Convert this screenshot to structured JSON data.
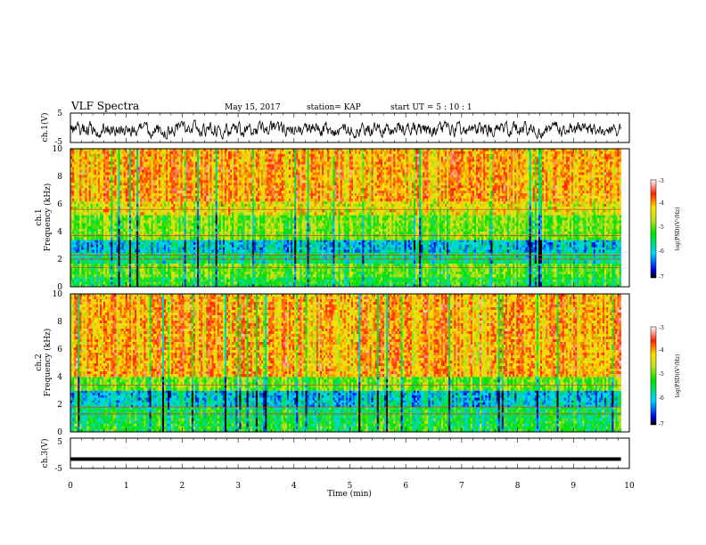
{
  "header": {
    "title": "VLF Spectra",
    "date": "May 15, 2017",
    "station": "station= KAP",
    "start": "start  UT  =   5  : 10 : 1"
  },
  "chart_data": [
    {
      "type": "line",
      "panel": "ch1-waveform",
      "ylabel": "ch.1(V)",
      "ylim": [
        -5,
        5
      ],
      "xlim": [
        0,
        10
      ],
      "y_ticks": [
        "5",
        "-5"
      ],
      "series": [
        {
          "mean": -0.6,
          "amplitude_approx": 1.5,
          "x_end": 9.85
        }
      ]
    },
    {
      "type": "heatmap",
      "panel": "ch1-spectrogram",
      "ylabel": "ch.1\nFrequency (kHz)",
      "ylim": [
        0,
        10
      ],
      "xlim": [
        0,
        10
      ],
      "y_ticks": [
        "0",
        "2",
        "4",
        "6",
        "8",
        "10"
      ],
      "horizontal_lines_khz": [
        5.6,
        3.7,
        2.3,
        2.0,
        1.4
      ],
      "bands": [
        {
          "from_khz": 0.0,
          "to_khz": 0.7,
          "log_psd": -5.3
        },
        {
          "from_khz": 0.7,
          "to_khz": 1.7,
          "log_psd": -5.0
        },
        {
          "from_khz": 1.7,
          "to_khz": 2.5,
          "log_psd": -5.6
        },
        {
          "from_khz": 2.5,
          "to_khz": 3.4,
          "log_psd": -6.0
        },
        {
          "from_khz": 3.4,
          "to_khz": 5.2,
          "log_psd": -4.9
        },
        {
          "from_khz": 5.2,
          "to_khz": 6.2,
          "log_psd": -4.4
        },
        {
          "from_khz": 6.2,
          "to_khz": 10.0,
          "log_psd": -4.0
        }
      ],
      "colorbar": {
        "label": "log(PSD)(V²/Hz)",
        "ticks": [
          "-3",
          "-4",
          "-5",
          "-6",
          "-7"
        ],
        "range": [
          -7,
          -3
        ]
      }
    },
    {
      "type": "heatmap",
      "panel": "ch2-spectrogram",
      "ylabel": "ch.2\nFrequency (kHz)",
      "ylim": [
        0,
        10
      ],
      "xlim": [
        0,
        10
      ],
      "y_ticks": [
        "0",
        "2",
        "4",
        "6",
        "8",
        "10"
      ],
      "horizontal_lines_khz": [
        3.4,
        1.8,
        1.3
      ],
      "bands": [
        {
          "from_khz": 0.0,
          "to_khz": 0.8,
          "log_psd": -5.3
        },
        {
          "from_khz": 0.8,
          "to_khz": 1.8,
          "log_psd": -5.4
        },
        {
          "from_khz": 1.8,
          "to_khz": 2.3,
          "log_psd": -5.9
        },
        {
          "from_khz": 2.3,
          "to_khz": 3.0,
          "log_psd": -6.0
        },
        {
          "from_khz": 3.0,
          "to_khz": 4.0,
          "log_psd": -4.9
        },
        {
          "from_khz": 4.0,
          "to_khz": 10.0,
          "log_psd": -4.0
        }
      ],
      "colorbar": {
        "label": "log(PSD)(V²/Hz)",
        "ticks": [
          "-3",
          "-4",
          "-5",
          "-6",
          "-7"
        ],
        "range": [
          -7,
          -3
        ]
      }
    },
    {
      "type": "line",
      "panel": "ch3-waveform",
      "ylabel": "ch.3(V)",
      "ylim": [
        -5,
        5
      ],
      "xlim": [
        0,
        10
      ],
      "y_ticks": [
        "5",
        "-5"
      ],
      "xlabel": "Time (min)",
      "x_ticks": [
        "0",
        "1",
        "2",
        "3",
        "4",
        "5",
        "6",
        "7",
        "8",
        "9",
        "10"
      ],
      "series": [
        {
          "constant_value": -1.9,
          "x_end": 9.85
        }
      ]
    }
  ]
}
